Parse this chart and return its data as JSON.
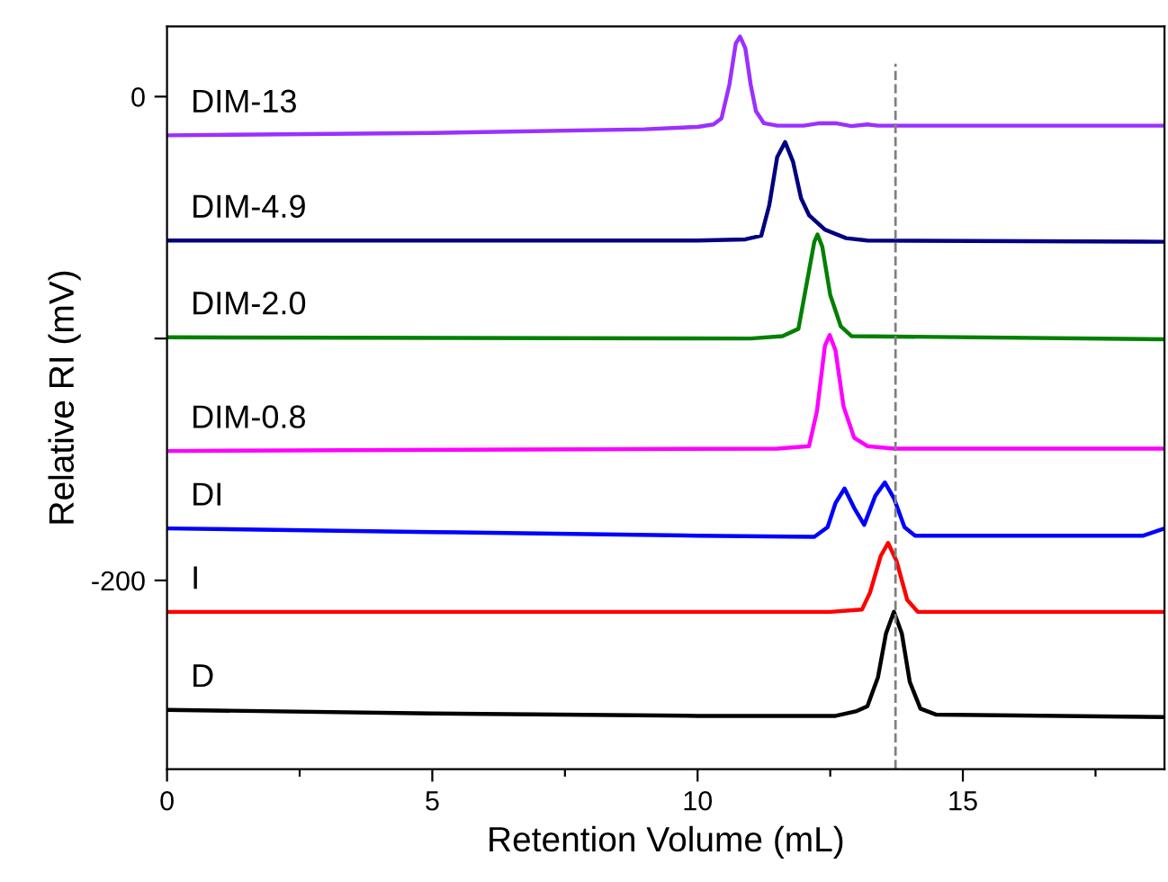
{
  "chart_data": {
    "type": "line",
    "xlabel": "Retention Volume (mL)",
    "ylabel": "Relative RI (mV)",
    "xlim": [
      0,
      18.8
    ],
    "ylim": [
      -278,
      29
    ],
    "xticks": [
      0,
      {
        "value": 2.5,
        "label": null
      },
      5,
      {
        "value": 7.5,
        "label": null
      },
      10,
      {
        "value": 12.5,
        "label": null
      },
      15,
      {
        "value": 17.5,
        "label": null
      }
    ],
    "yticks": [
      {
        "value": -200,
        "label": "-200"
      },
      {
        "value": -100,
        "label": null
      },
      0
    ],
    "grid": false,
    "legend": false,
    "marker": "none",
    "line_style": "solid",
    "ref_lines": [
      {
        "axis": "x",
        "value": 13.73,
        "color": "#808080",
        "line_style": "dashed"
      }
    ],
    "series": [
      {
        "name": "DIM-13",
        "color": "#9b30ff",
        "x": [
          0,
          5,
          9,
          10,
          10.3,
          10.45,
          10.6,
          10.72,
          10.8,
          10.9,
          11.0,
          11.1,
          11.25,
          11.5,
          12,
          12.3,
          12.6,
          12.9,
          13.2,
          13.4,
          14,
          18.8
        ],
        "values": [
          -16,
          -15,
          -13.5,
          -12.5,
          -11.5,
          -9,
          5,
          22,
          24.8,
          20,
          5,
          -6,
          -11,
          -12,
          -12,
          -11,
          -11,
          -12.2,
          -11.5,
          -12,
          -12,
          -12
        ]
      },
      {
        "name": "DIM-4.9",
        "color": "#000080",
        "x": [
          0,
          10,
          10.9,
          11.2,
          11.35,
          11.5,
          11.65,
          11.8,
          11.95,
          12.1,
          12.4,
          12.8,
          13.2,
          18.8
        ],
        "values": [
          -59.5,
          -59.5,
          -59,
          -57.5,
          -45,
          -25,
          -18.8,
          -27,
          -42,
          -49,
          -55,
          -58.5,
          -59.5,
          -60
        ]
      },
      {
        "name": "DIM-2.0",
        "color": "#008000",
        "x": [
          0,
          11,
          11.6,
          11.9,
          12.05,
          12.2,
          12.26,
          12.35,
          12.5,
          12.7,
          12.9,
          18.8
        ],
        "values": [
          -99.5,
          -100,
          -99,
          -96,
          -78,
          -60,
          -57,
          -62,
          -82,
          -95,
          -99,
          -100.3
        ]
      },
      {
        "name": "DIM-0.8",
        "color": "#ff00ff",
        "x": [
          0,
          11.5,
          12.1,
          12.25,
          12.4,
          12.49,
          12.6,
          12.75,
          12.95,
          13.2,
          13.7,
          18.8
        ],
        "values": [
          -146.5,
          -145.5,
          -144.5,
          -130,
          -103,
          -98.6,
          -105,
          -128,
          -141,
          -144.5,
          -145.5,
          -145.5
        ]
      },
      {
        "name": "DI",
        "color": "#0000ff",
        "x": [
          0,
          5,
          10,
          12.2,
          12.45,
          12.6,
          12.77,
          12.95,
          13.14,
          13.35,
          13.53,
          13.7,
          13.9,
          14.1,
          18.4,
          18.8
        ],
        "values": [
          -178.5,
          -180,
          -181.5,
          -182,
          -178,
          -168,
          -162,
          -170,
          -177,
          -165,
          -159.5,
          -166,
          -178,
          -181.5,
          -181.5,
          -178.5
        ]
      },
      {
        "name": "I",
        "color": "#ff0000",
        "x": [
          0,
          12.5,
          13.1,
          13.25,
          13.45,
          13.59,
          13.75,
          13.95,
          14.15,
          18.8
        ],
        "values": [
          -213,
          -213,
          -212,
          -205,
          -190,
          -184.5,
          -192,
          -208,
          -213,
          -213
        ]
      },
      {
        "name": "D",
        "color": "#000000",
        "x": [
          0,
          5,
          10,
          12.6,
          13.0,
          13.2,
          13.4,
          13.55,
          13.7,
          13.85,
          14.0,
          14.2,
          14.5,
          18.8
        ],
        "values": [
          -253.5,
          -255,
          -256,
          -256,
          -254,
          -252,
          -240,
          -222,
          -213,
          -222,
          -242,
          -253,
          -255.5,
          -256.5
        ]
      }
    ]
  }
}
